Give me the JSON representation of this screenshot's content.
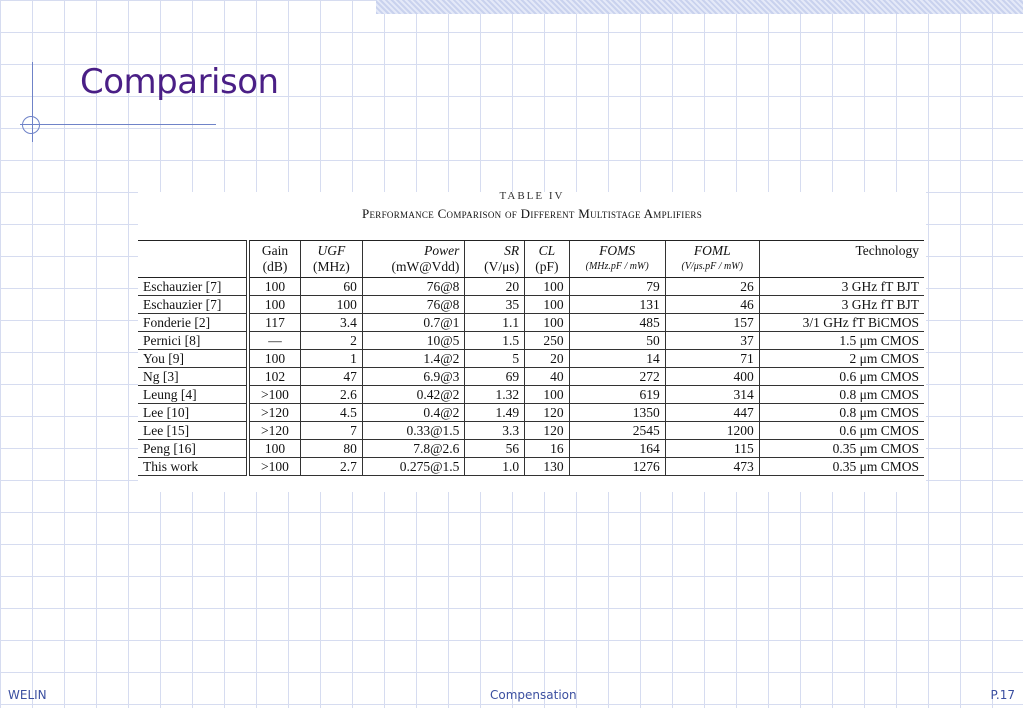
{
  "slide": {
    "title": "Comparison",
    "footer_left": "WELIN",
    "footer_center": "Compensation",
    "footer_right": "P.17"
  },
  "table": {
    "label": "TABLE IV",
    "caption": "Performance Comparison of Different Multistage Amplifiers",
    "headers_top": [
      "",
      "Gain",
      "UGF",
      "Power",
      "SR",
      "CL",
      "FOMS",
      "FOML",
      "Technology"
    ],
    "headers_bottom": [
      "",
      "(dB)",
      "(MHz)",
      "(mW@Vdd)",
      "(V/μs)",
      "(pF)",
      "(MHz.pF / mW)",
      "(V/μs.pF / mW)",
      ""
    ],
    "rows": [
      [
        "Eschauzier [7]",
        "100",
        "60",
        "76@8",
        "20",
        "100",
        "79",
        "26",
        "3 GHz fT BJT"
      ],
      [
        "Eschauzier [7]",
        "100",
        "100",
        "76@8",
        "35",
        "100",
        "131",
        "46",
        "3 GHz fT BJT"
      ],
      [
        "Fonderie [2]",
        "117",
        "3.4",
        "0.7@1",
        "1.1",
        "100",
        "485",
        "157",
        "3/1 GHz fT BiCMOS"
      ],
      [
        "Pernici [8]",
        "—",
        "2",
        "10@5",
        "1.5",
        "250",
        "50",
        "37",
        "1.5 μm CMOS"
      ],
      [
        "You [9]",
        "100",
        "1",
        "1.4@2",
        "5",
        "20",
        "14",
        "71",
        "2 μm CMOS"
      ],
      [
        "Ng [3]",
        "102",
        "47",
        "6.9@3",
        "69",
        "40",
        "272",
        "400",
        "0.6 μm CMOS"
      ],
      [
        "Leung [4]",
        ">100",
        "2.6",
        "0.42@2",
        "1.32",
        "100",
        "619",
        "314",
        "0.8 μm CMOS"
      ],
      [
        "Lee [10]",
        ">120",
        "4.5",
        "0.4@2",
        "1.49",
        "120",
        "1350",
        "447",
        "0.8 μm CMOS"
      ],
      [
        "Lee [15]",
        ">120",
        "7",
        "0.33@1.5",
        "3.3",
        "120",
        "2545",
        "1200",
        "0.6 μm CMOS"
      ],
      [
        "Peng [16]",
        "100",
        "80",
        "7.8@2.6",
        "56",
        "16",
        "164",
        "115",
        "0.35 μm CMOS"
      ],
      [
        "This work",
        ">100",
        "2.7",
        "0.275@1.5",
        "1.0",
        "130",
        "1276",
        "473",
        "0.35 μm CMOS"
      ]
    ]
  }
}
